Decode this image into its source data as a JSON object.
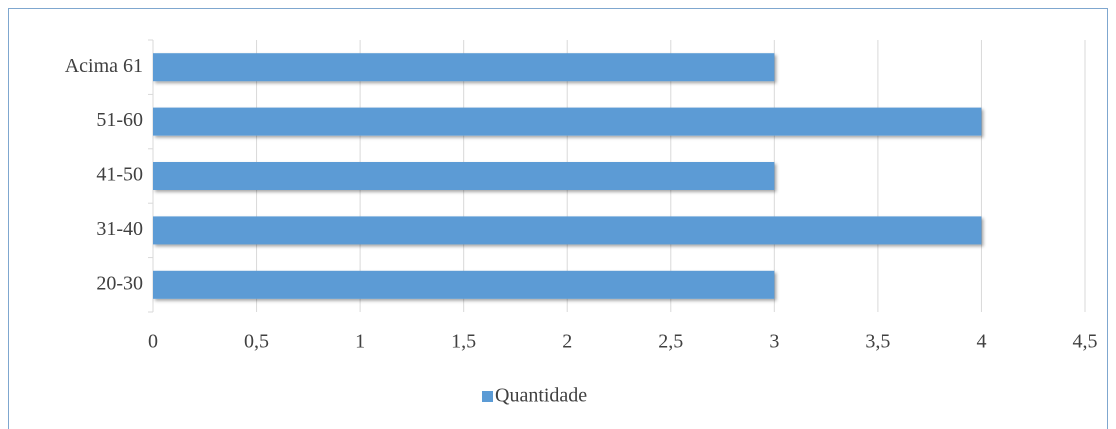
{
  "chart_data": {
    "type": "hbar",
    "categories": [
      "20-30",
      "31-40",
      "41-50",
      "51-60",
      "Acima 61"
    ],
    "series": [
      {
        "name": "Quantidade",
        "color": "#5b9bd5",
        "values": [
          3,
          4,
          3,
          4,
          3
        ]
      }
    ],
    "xlim": [
      0,
      4.5
    ],
    "xticks": [
      0,
      {
        "value": 0.5,
        "label": "0,5"
      },
      1,
      {
        "value": 1.5,
        "label": "1,5"
      },
      2,
      {
        "value": 2.5,
        "label": "2,5"
      },
      3,
      {
        "value": 3.5,
        "label": "3,5"
      },
      4,
      {
        "value": 4.5,
        "label": "4,5"
      }
    ],
    "grid": true,
    "legend": "bottom"
  }
}
